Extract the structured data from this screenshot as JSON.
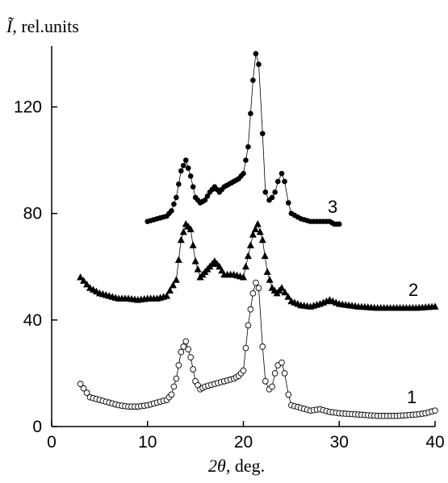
{
  "chart_data": {
    "type": "scatter",
    "ylabel_var": "Ĩ",
    "ylabel_unit": ", rel.units",
    "xlabel_var": "2θ",
    "xlabel_unit": ", deg.",
    "xlim": [
      0,
      40
    ],
    "ylim": [
      0,
      145
    ],
    "x_ticks": [
      0,
      10,
      20,
      30,
      40
    ],
    "y_ticks": [
      0,
      40,
      80,
      120
    ],
    "grid": false,
    "series": [
      {
        "name": "1",
        "marker": "open-circle",
        "color": "#000000",
        "x": [
          3,
          4,
          5,
          6,
          7,
          8,
          9,
          10,
          11,
          12,
          12.5,
          13,
          13.5,
          14,
          14.5,
          15,
          15.5,
          16,
          17,
          18,
          19,
          19.5,
          20,
          20.5,
          21,
          21.3,
          21.6,
          22,
          22.3,
          22.7,
          23,
          23.3,
          23.6,
          24,
          24.3,
          24.7,
          25,
          26,
          27,
          28,
          29,
          30,
          32,
          34,
          36,
          38,
          39,
          40
        ],
        "values": [
          16,
          11,
          10,
          9,
          8,
          7.5,
          7.5,
          8,
          9,
          10,
          12,
          18,
          28,
          32,
          26,
          17,
          14,
          15,
          16,
          17,
          18,
          19,
          21,
          38,
          50,
          54,
          52,
          30,
          17,
          14,
          15,
          20,
          23,
          24,
          20,
          12,
          8,
          7,
          6,
          6.5,
          5.5,
          5,
          4.5,
          4,
          4,
          4.5,
          5,
          6
        ]
      },
      {
        "name": "2",
        "marker": "filled-triangle",
        "color": "#000000",
        "x": [
          3,
          4,
          5,
          6,
          7,
          8,
          9,
          10,
          11,
          12,
          13,
          13.5,
          14,
          14.5,
          15,
          15.5,
          16,
          16.5,
          17,
          17.5,
          18,
          19,
          20,
          20.5,
          21,
          21.5,
          22,
          22.5,
          23,
          23.5,
          24,
          25,
          26,
          27,
          28,
          29,
          30,
          32,
          34,
          36,
          38,
          40
        ],
        "values": [
          56,
          52,
          50,
          49,
          48,
          48,
          47.5,
          48,
          48,
          49,
          55,
          70,
          76,
          74,
          62,
          56,
          58,
          60,
          62,
          60,
          57,
          57,
          56,
          64,
          72,
          76,
          70,
          58,
          52,
          50,
          52,
          47,
          45.5,
          45,
          46,
          47.5,
          46,
          45,
          44.5,
          44.5,
          44.5,
          45
        ]
      },
      {
        "name": "3",
        "marker": "filled-circle",
        "color": "#000000",
        "x": [
          10,
          11,
          12,
          12.5,
          13,
          13.5,
          14,
          14.5,
          15,
          15.5,
          16,
          16.5,
          17,
          17.5,
          18,
          18.5,
          19,
          19.5,
          20,
          20.5,
          21,
          21.3,
          21.6,
          22,
          22.3,
          22.7,
          23,
          23.3,
          23.6,
          24,
          24.3,
          24.7,
          25,
          26,
          27,
          28,
          29,
          29.5,
          30
        ],
        "values": [
          77,
          78,
          79,
          81,
          86,
          96,
          100,
          94,
          86,
          84,
          85,
          88,
          90,
          88,
          90,
          91,
          92,
          93,
          95,
          105,
          130,
          140,
          136,
          110,
          88,
          85,
          86,
          88,
          92,
          95,
          92,
          84,
          80,
          78,
          77,
          77,
          77,
          76,
          76
        ]
      }
    ]
  }
}
